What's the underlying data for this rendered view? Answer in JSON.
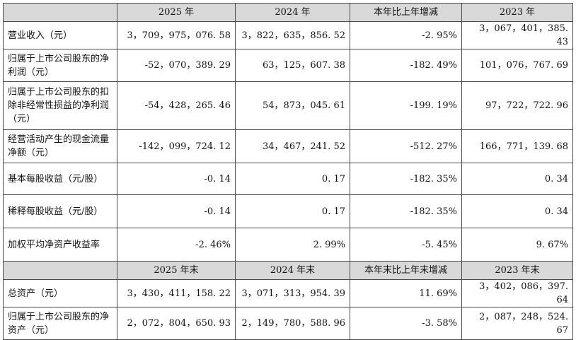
{
  "header_1": [
    "",
    "2025 年",
    "2024 年",
    "本年比上年增减",
    "2023 年"
  ],
  "rows_1": [
    [
      "营业收入（元）",
      "3，709，975，076. 58",
      "3，822，635，856. 52",
      "-2. 95%",
      "3，067，401，385. 43"
    ],
    [
      "归属于上市公司股东的净利润（元）",
      "-52，070，389. 29",
      "63，125，607. 38",
      "-182. 49%",
      "101，076，767. 69"
    ],
    [
      "归属于上市公司股东的扣除非经常性损益的净利润（元）",
      "-54，428，265. 46",
      "54，873，045. 61",
      "-199. 19%",
      "97，722，722. 96"
    ],
    [
      "经营活动产生的现金流量净额（元）",
      "-142，099，724. 12",
      "34，467，241. 52",
      "-512. 27%",
      "166，771，139. 68"
    ],
    [
      "基本每股收益（元/股）",
      "-0. 14",
      "0. 17",
      "-182. 35%",
      "0. 34"
    ],
    [
      "稀释每股收益（元/股）",
      "-0. 14",
      "0. 17",
      "-182. 35%",
      "0. 34"
    ],
    [
      "加权平均净资产收益率",
      "-2. 46%",
      "2. 99%",
      "-5. 45%",
      "9. 67%"
    ]
  ],
  "header_2": [
    "",
    "2025 年末",
    "2024 年末",
    "本年末比上年末增减",
    "2023 年末"
  ],
  "rows_2": [
    [
      "总资产（元）",
      "3，430，411，158. 22",
      "3，071，313，954. 39",
      "11. 69%",
      "3，402，086，397. 64"
    ],
    [
      "归属于上市公司股东的净资产（元）",
      "2，072，804，650. 93",
      "2，149，780，588. 96",
      "-3. 58%",
      "2，087，248，524. 67"
    ]
  ]
}
